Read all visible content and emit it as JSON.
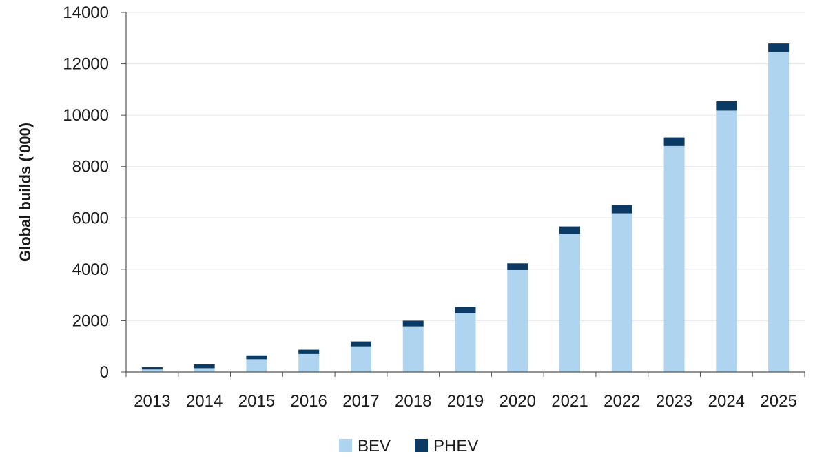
{
  "chart_data": {
    "type": "bar",
    "stacked": true,
    "categories": [
      "2013",
      "2014",
      "2015",
      "2016",
      "2017",
      "2018",
      "2019",
      "2020",
      "2021",
      "2022",
      "2023",
      "2024",
      "2025"
    ],
    "series": [
      {
        "name": "BEV",
        "color": "#aed4f0",
        "values": [
          100,
          150,
          500,
          700,
          1000,
          1780,
          2280,
          3970,
          5380,
          6180,
          8800,
          10180,
          12460
        ]
      },
      {
        "name": "PHEV",
        "color": "#0b3a64",
        "values": [
          90,
          150,
          150,
          170,
          190,
          220,
          250,
          260,
          290,
          320,
          330,
          360,
          330
        ]
      }
    ],
    "title": "",
    "xlabel": "",
    "ylabel": "Global builds ('000)",
    "ylim": [
      0,
      14000
    ],
    "yticks": [
      0,
      2000,
      4000,
      6000,
      8000,
      10000,
      12000,
      14000
    ],
    "grid": true,
    "legend_position": "bottom-center"
  }
}
